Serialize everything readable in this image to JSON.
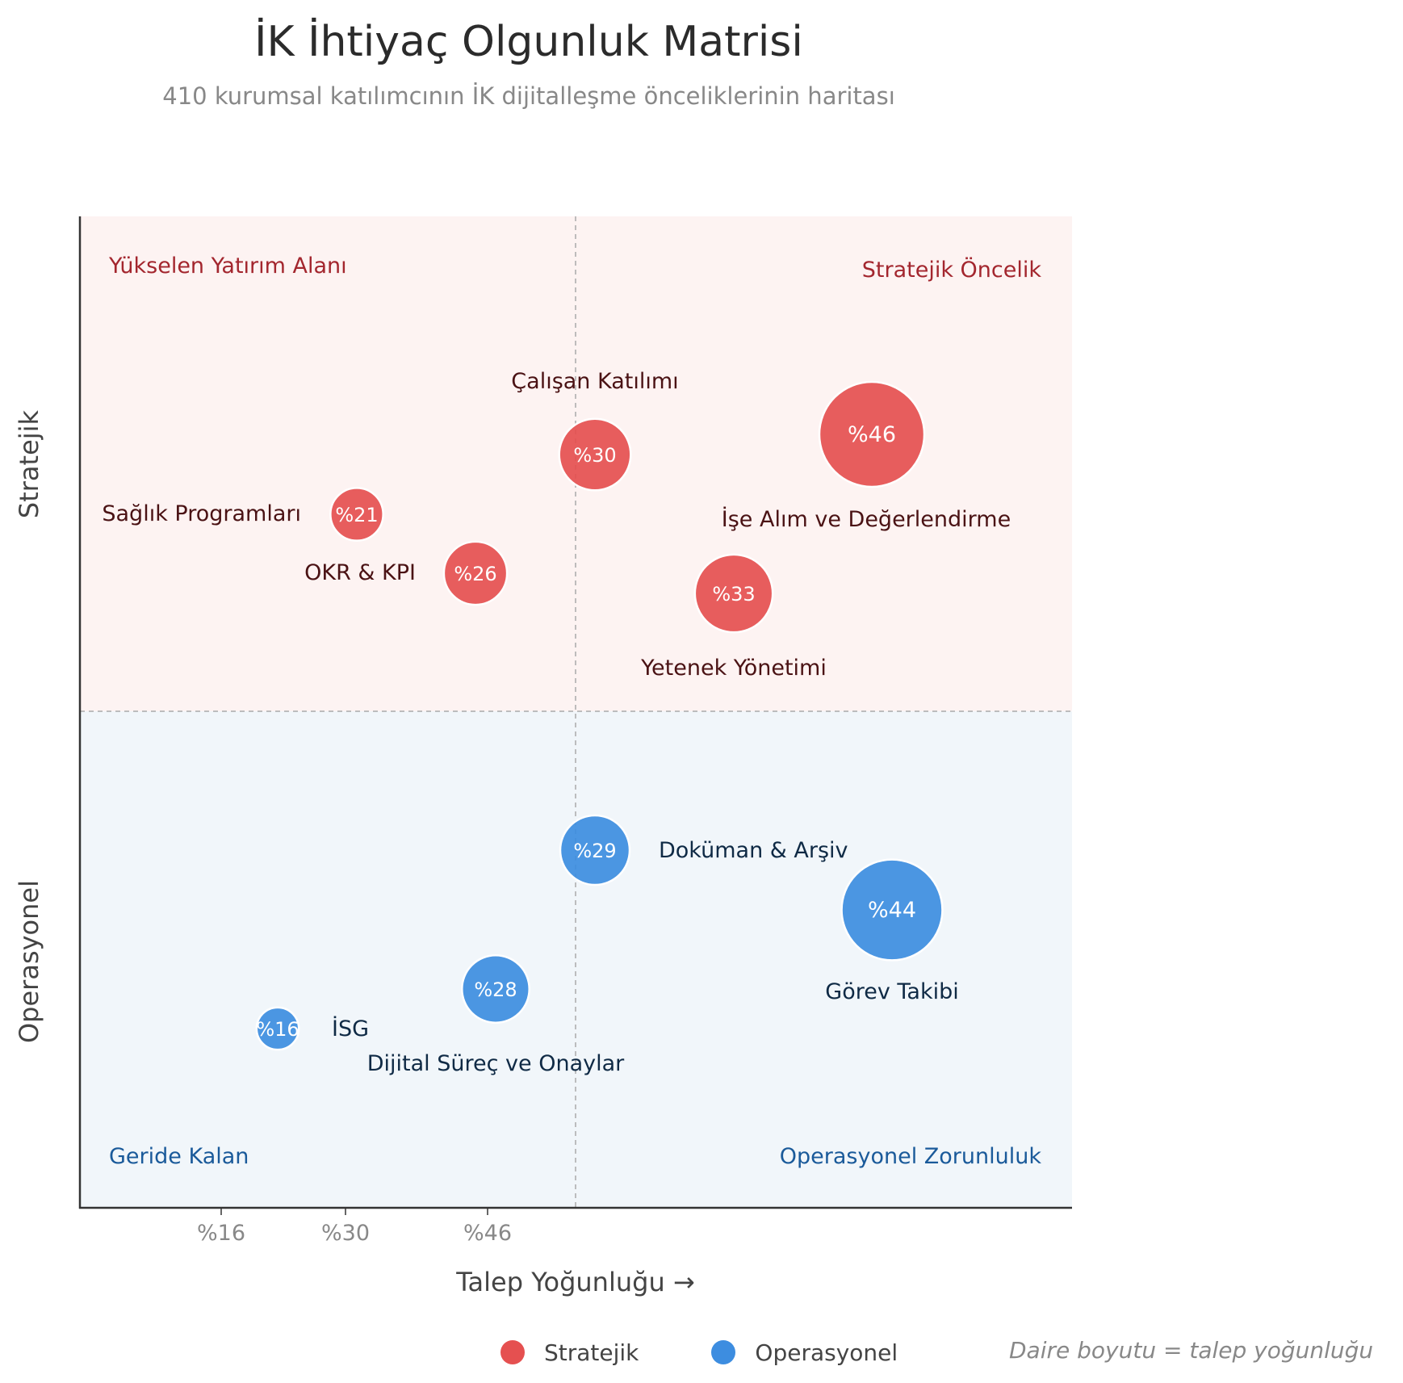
{
  "title": "İK İhtiyaç Olgunluk Matrisi",
  "subtitle": "410 kurumsal katılımcının İK dijitalleşme önceliklerinin haritası",
  "colors": {
    "strategic": "#e55050",
    "operational": "#3d8de0",
    "strategic_bg": "#fdf3f2",
    "operational_bg": "#f1f6fa",
    "strategic_quadrant_text": "#a3262e",
    "operational_quadrant_text": "#1a5a9a",
    "strategic_label_text": "#4a1214",
    "operational_label_text": "#0f2a45"
  },
  "chart_data": {
    "type": "scatter",
    "xlabel": "Talep Yoğunluğu →",
    "y_category_labels": [
      "Stratejik",
      "Operasyonel"
    ],
    "x_ticks": [
      {
        "label": "%16",
        "value": 16
      },
      {
        "label": "%30",
        "value": 30
      },
      {
        "label": "%46",
        "value": 46
      }
    ],
    "quadrants": {
      "top_left": "Yükselen Yatırım Alanı",
      "top_right": "Stratejik Öncelik",
      "bottom_left": "Geride Kalan",
      "bottom_right": "Operasyonel Zorunluluk"
    },
    "legend": [
      {
        "name": "Stratejik",
        "color": "#e55050"
      },
      {
        "name": "Operasyonel",
        "color": "#3d8de0"
      }
    ],
    "size_note": "Daire boyutu = talep yoğunluğu",
    "points": [
      {
        "name": "Çalışan Katılımı",
        "value_label": "%30",
        "value": 30,
        "group": "Stratejik"
      },
      {
        "name": "İşe Alım ve Değerlendirme",
        "value_label": "%46",
        "value": 46,
        "group": "Stratejik"
      },
      {
        "name": "Sağlık Programları",
        "value_label": "%21",
        "value": 21,
        "group": "Stratejik"
      },
      {
        "name": "OKR & KPI",
        "value_label": "%26",
        "value": 26,
        "group": "Stratejik"
      },
      {
        "name": "Yetenek Yönetimi",
        "value_label": "%33",
        "value": 33,
        "group": "Stratejik"
      },
      {
        "name": "Doküman & Arşiv",
        "value_label": "%29",
        "value": 29,
        "group": "Operasyonel"
      },
      {
        "name": "Görev Takibi",
        "value_label": "%44",
        "value": 44,
        "group": "Operasyonel"
      },
      {
        "name": "Dijital Süreç ve Onaylar",
        "value_label": "%28",
        "value": 28,
        "group": "Operasyonel"
      },
      {
        "name": "İSG",
        "value_label": "%16",
        "value": 16,
        "group": "Operasyonel"
      }
    ]
  }
}
